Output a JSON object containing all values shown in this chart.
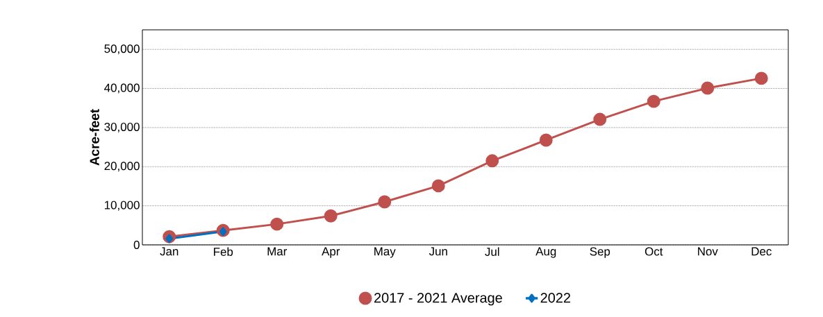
{
  "chart_data": {
    "type": "line",
    "ylabel": "Acre-feet",
    "categories": [
      "Jan",
      "Feb",
      "Mar",
      "Apr",
      "May",
      "Jun",
      "Jul",
      "Aug",
      "Sep",
      "Oct",
      "Nov",
      "Dec"
    ],
    "series": [
      {
        "name": "2017 - 2021 Average",
        "color": "#c0504d",
        "marker": "circle",
        "values": [
          2100,
          3700,
          5300,
          7400,
          11000,
          15100,
          21500,
          26800,
          32100,
          36700,
          40100,
          42600
        ]
      },
      {
        "name": "2022",
        "color": "#0070c0",
        "marker": "diamond",
        "values": [
          1600,
          3400,
          null,
          null,
          null,
          null,
          null,
          null,
          null,
          null,
          null,
          null
        ]
      }
    ],
    "ylim": [
      0,
      55000
    ],
    "yticks": [
      {
        "value": 0,
        "label": "0"
      },
      {
        "value": 10000,
        "label": "10,000"
      },
      {
        "value": 20000,
        "label": "20,000"
      },
      {
        "value": 30000,
        "label": "30,000"
      },
      {
        "value": 40000,
        "label": "40,000"
      },
      {
        "value": 50000,
        "label": "50,000"
      }
    ],
    "grid": "y",
    "legend": "bottom",
    "line_style": "solid"
  }
}
